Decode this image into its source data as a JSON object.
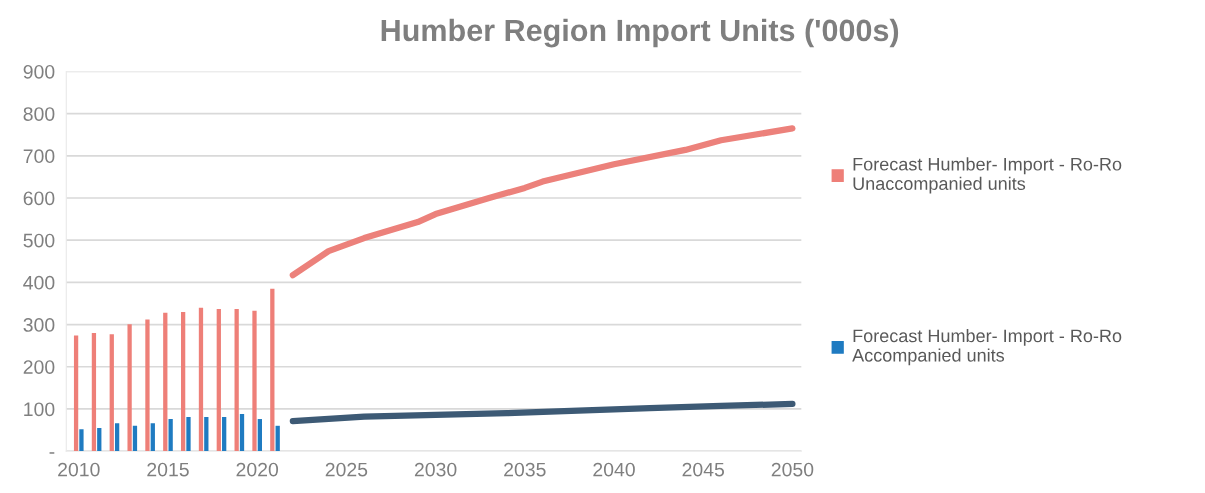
{
  "chart_data": {
    "type": "bar",
    "title": "Humber Region Import Units ('000s)",
    "series": [
      {
        "name": "Forecast Humber- Import - Ro-Ro\nUnaccompanied units",
        "color": "#ee7f78",
        "x": [
          2010,
          2011,
          2012,
          2013,
          2014,
          2015,
          2016,
          2017,
          2018,
          2019,
          2020,
          2021
        ],
        "values": [
          274,
          280,
          277,
          301,
          312,
          328,
          330,
          340,
          337,
          337,
          333,
          385
        ]
      },
      {
        "name": "Forecast Humber- Import - Ro-Ro\nAccompanied units",
        "color": "#1f7bc1",
        "x": [
          2010,
          2011,
          2012,
          2013,
          2014,
          2015,
          2016,
          2017,
          2018,
          2019,
          2020,
          2021
        ],
        "values": [
          52,
          55,
          66,
          60,
          66,
          76,
          81,
          81,
          81,
          88,
          76,
          60
        ]
      },
      {
        "type": "line",
        "color": "#ec817b",
        "x": [
          2022,
          2024,
          2026,
          2029,
          2030,
          2033,
          2035,
          2036,
          2040,
          2044,
          2046,
          2050
        ],
        "values": [
          417,
          474,
          505,
          543,
          562,
          600,
          624,
          639,
          680,
          714,
          737,
          765
        ]
      },
      {
        "type": "line",
        "color": "#3d5a75",
        "x": [
          2022,
          2026,
          2030,
          2034,
          2038,
          2042,
          2046,
          2050
        ],
        "values": [
          71,
          82,
          86,
          90,
          96,
          102,
          107,
          112
        ]
      }
    ],
    "xlim": [
      2009.3,
      2050.5
    ],
    "xticks": [
      2010,
      2015,
      2020,
      2025,
      2030,
      2035,
      2040,
      2045,
      2050
    ],
    "ylim": [
      0,
      900
    ],
    "yticks": [
      {
        "value": 0,
        "label": "-"
      },
      100,
      200,
      300,
      400,
      500,
      600,
      700,
      800,
      900
    ],
    "grid": "y",
    "legend": "right",
    "marker": "none",
    "line_style": "solid"
  }
}
